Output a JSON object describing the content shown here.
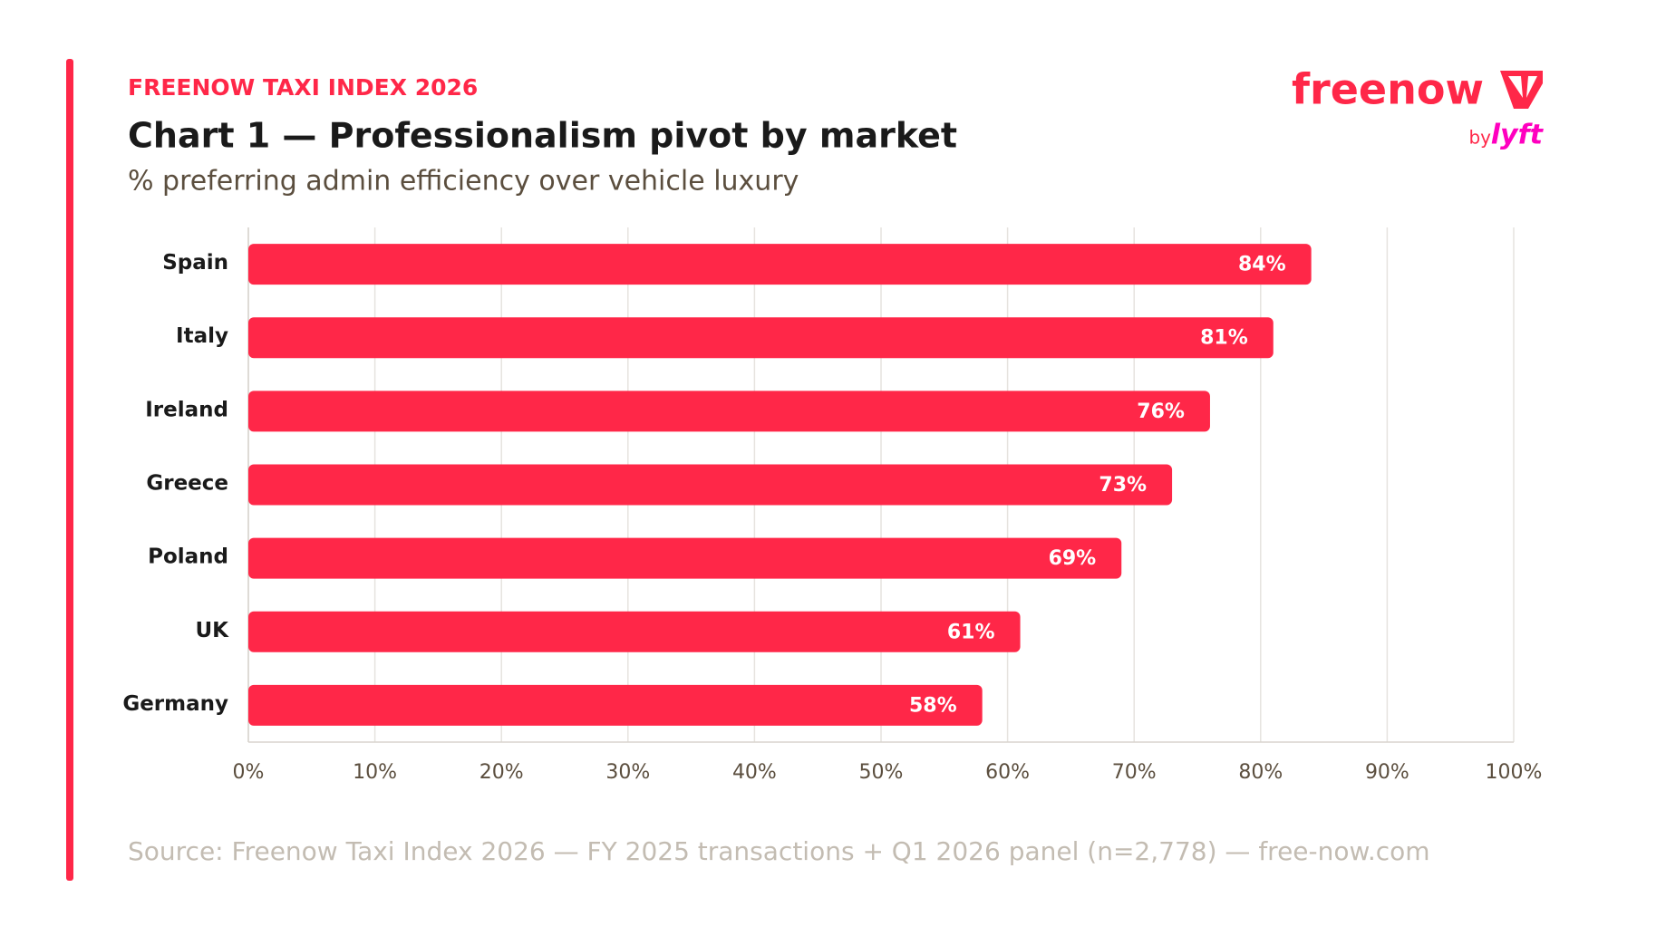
{
  "chart_data": {
    "type": "bar",
    "orientation": "horizontal",
    "eyebrow": "FREENOW TAXI INDEX 2026",
    "title": "Chart 1 — Professionalism pivot by market",
    "subtitle": "% preferring admin efficiency over vehicle luxury",
    "logo": {
      "brand": "freenow",
      "by": "by",
      "partner": "lyft"
    },
    "categories": [
      "Spain",
      "Italy",
      "Ireland",
      "Greece",
      "Poland",
      "UK",
      "Germany"
    ],
    "values": [
      84,
      81,
      76,
      73,
      69,
      61,
      58
    ],
    "value_labels": [
      "84%",
      "81%",
      "76%",
      "73%",
      "69%",
      "61%",
      "58%"
    ],
    "color": "#ff2748",
    "xlim": [
      0,
      100
    ],
    "xticks": [
      {
        "value": 0,
        "label": "0%"
      },
      {
        "value": 10,
        "label": "10%"
      },
      {
        "value": 20,
        "label": "20%"
      },
      {
        "value": 30,
        "label": "30%"
      },
      {
        "value": 40,
        "label": "40%"
      },
      {
        "value": 50,
        "label": "50%"
      },
      {
        "value": 60,
        "label": "60%"
      },
      {
        "value": 70,
        "label": "70%"
      },
      {
        "value": 80,
        "label": "80%"
      },
      {
        "value": 90,
        "label": "90%"
      },
      {
        "value": 100,
        "label": "100%"
      }
    ],
    "grid": true,
    "source": "Source: Freenow Taxi Index 2026 — FY 2025 transactions + Q1 2026 panel (n=2,778) — free-now.com"
  }
}
